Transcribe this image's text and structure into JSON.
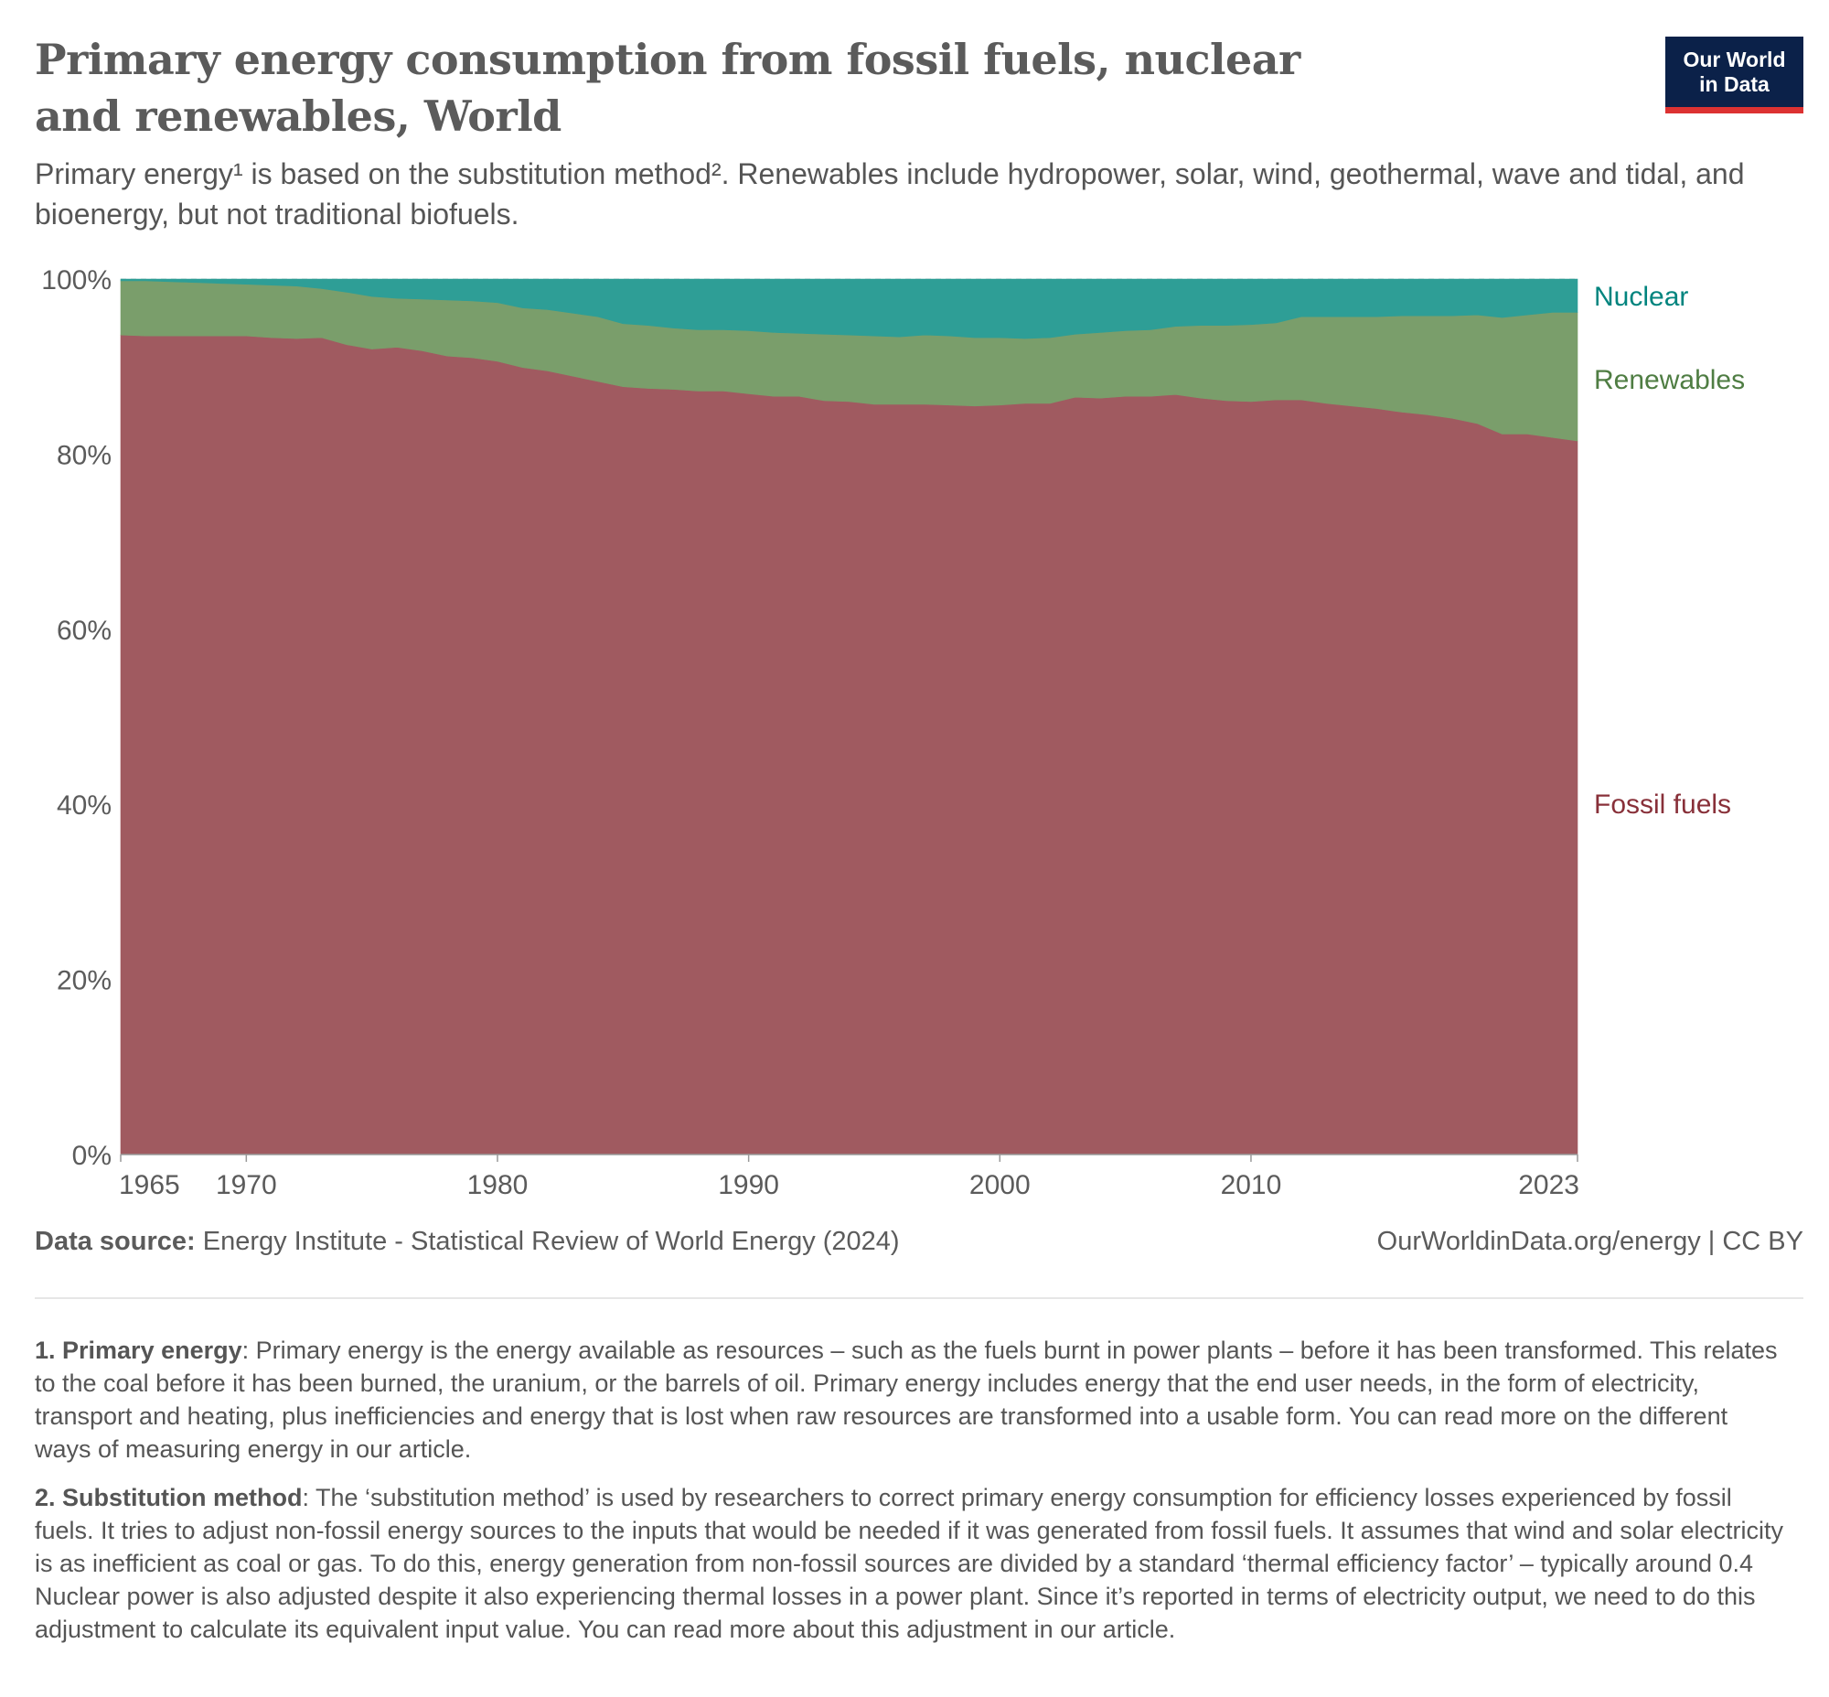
{
  "header": {
    "title": "Primary energy consumption from fossil fuels, nuclear and renewables, World",
    "subtitle": "Primary energy¹ is based on the substitution method². Renewables include hydropower, solar, wind, geothermal, wave and tidal, and bioenergy, but not traditional biofuels.",
    "logo_line1": "Our World",
    "logo_line2": "in Data"
  },
  "colors": {
    "fossil": "#a05a60",
    "renewables": "#7a9e6b",
    "nuclear": "#2e9e96",
    "fossil_label": "#883039",
    "renewables_label": "#4f7d43",
    "nuclear_label": "#00847e",
    "axis_text": "#5b5b5b",
    "grid": "#dddddd"
  },
  "chart_data": {
    "type": "area",
    "stacked": true,
    "normalized": true,
    "x": [
      1965,
      1966,
      1967,
      1968,
      1969,
      1970,
      1971,
      1972,
      1973,
      1974,
      1975,
      1976,
      1977,
      1978,
      1979,
      1980,
      1981,
      1982,
      1983,
      1984,
      1985,
      1986,
      1987,
      1988,
      1989,
      1990,
      1991,
      1992,
      1993,
      1994,
      1995,
      1996,
      1997,
      1998,
      1999,
      2000,
      2001,
      2002,
      2003,
      2004,
      2005,
      2006,
      2007,
      2008,
      2009,
      2010,
      2011,
      2012,
      2013,
      2014,
      2015,
      2016,
      2017,
      2018,
      2019,
      2020,
      2021,
      2022,
      2023
    ],
    "series": [
      {
        "name": "Fossil fuels",
        "values": [
          93.6,
          93.5,
          93.5,
          93.5,
          93.5,
          93.5,
          93.3,
          93.2,
          93.3,
          92.5,
          92.0,
          92.2,
          91.8,
          91.2,
          91.0,
          90.6,
          89.9,
          89.5,
          88.9,
          88.3,
          87.7,
          87.5,
          87.4,
          87.2,
          87.2,
          86.9,
          86.6,
          86.6,
          86.1,
          86.0,
          85.7,
          85.7,
          85.7,
          85.6,
          85.5,
          85.6,
          85.8,
          85.8,
          86.5,
          86.4,
          86.6,
          86.6,
          86.8,
          86.4,
          86.1,
          86.0,
          86.2,
          86.2,
          85.8,
          85.5,
          85.2,
          84.8,
          84.5,
          84.1,
          83.5,
          82.3,
          82.3,
          81.9,
          81.5
        ]
      },
      {
        "name": "Renewables",
        "values": [
          6.2,
          6.3,
          6.2,
          6.1,
          6.0,
          5.9,
          6.0,
          6.0,
          5.6,
          6.0,
          6.0,
          5.6,
          5.9,
          6.4,
          6.5,
          6.7,
          6.8,
          7.0,
          7.2,
          7.4,
          7.2,
          7.2,
          7.0,
          7.0,
          7.0,
          7.2,
          7.3,
          7.2,
          7.6,
          7.6,
          7.8,
          7.7,
          7.9,
          7.9,
          7.8,
          7.7,
          7.4,
          7.5,
          7.2,
          7.5,
          7.5,
          7.6,
          7.8,
          8.3,
          8.6,
          8.8,
          8.8,
          9.5,
          9.9,
          10.2,
          10.5,
          11.0,
          11.3,
          11.7,
          12.4,
          13.3,
          13.6,
          14.3,
          14.7
        ]
      },
      {
        "name": "Nuclear",
        "values": [
          0.2,
          0.2,
          0.3,
          0.4,
          0.5,
          0.6,
          0.7,
          0.8,
          1.1,
          1.5,
          2.0,
          2.2,
          2.3,
          2.4,
          2.5,
          2.7,
          3.3,
          3.5,
          3.9,
          4.3,
          5.1,
          5.3,
          5.6,
          5.8,
          5.8,
          5.9,
          6.1,
          6.2,
          6.3,
          6.4,
          6.5,
          6.6,
          6.4,
          6.5,
          6.7,
          6.7,
          6.8,
          6.7,
          6.3,
          6.1,
          5.9,
          5.8,
          5.4,
          5.3,
          5.3,
          5.2,
          5.0,
          4.3,
          4.3,
          4.3,
          4.3,
          4.2,
          4.2,
          4.2,
          4.1,
          4.4,
          4.1,
          3.8,
          3.8
        ]
      }
    ],
    "y_range": [
      0,
      100
    ],
    "y_ticks": [
      "0%",
      "20%",
      "40%",
      "60%",
      "80%",
      "100%"
    ],
    "x_ticks": [
      1965,
      1970,
      1980,
      1990,
      2000,
      2010,
      2023
    ],
    "legend": "right-inline",
    "grid": "horizontal dashed"
  },
  "footer": {
    "source_label": "Data source:",
    "source_text": "Energy Institute - Statistical Review of World Energy (2024)",
    "url_text": "OurWorldinData.org/energy | CC BY"
  },
  "notes": [
    {
      "label": "1. Primary energy",
      "text": ": Primary energy is the energy available as resources – such as the fuels burnt in power plants – before it has been transformed. This relates to the coal before it has been burned, the uranium, or the barrels of oil. Primary energy includes energy that the end user needs, in the form of electricity, transport and heating, plus inefficiencies and energy that is lost when raw resources are transformed into a usable form. You can read more on the different ways of measuring energy in our article."
    },
    {
      "label": "2. Substitution method",
      "text": ": The ‘substitution method’ is used by researchers to correct primary energy consumption for efficiency losses experienced by fossil fuels. It tries to adjust non-fossil energy sources to the inputs that would be needed if it was generated from fossil fuels. It assumes that wind and solar electricity is as inefficient as coal or gas. To do this, energy generation from non-fossil sources are divided by a standard ‘thermal efficiency factor’ – typically around 0.4 Nuclear power is also adjusted despite it also experiencing thermal losses in a power plant. Since it’s reported in terms of electricity output, we need to do this adjustment to calculate its equivalent input value. You can read more about this adjustment in our article."
    }
  ]
}
